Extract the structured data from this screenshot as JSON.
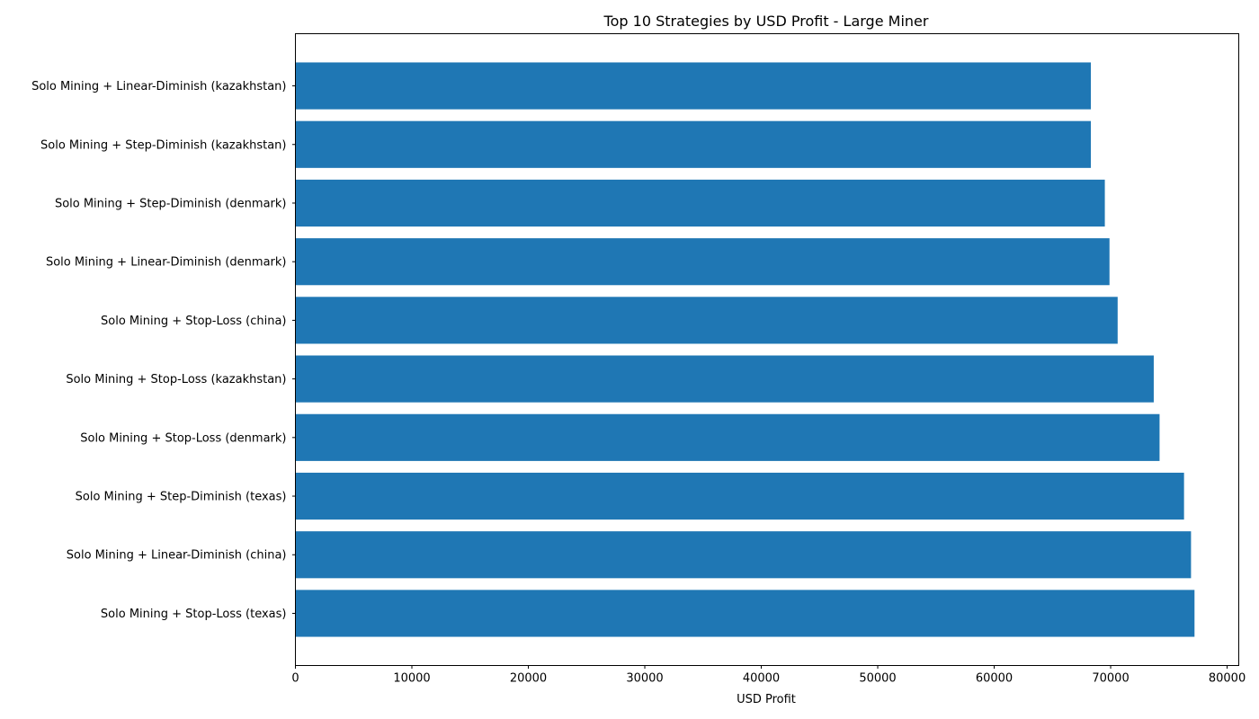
{
  "chart_data": {
    "type": "bar",
    "orientation": "horizontal",
    "title": "Top 10 Strategies by USD Profit - Large Miner",
    "xlabel": "USD Profit",
    "ylabel": "",
    "xlim": [
      0,
      81000
    ],
    "xticks": [
      0,
      10000,
      20000,
      30000,
      40000,
      50000,
      60000,
      70000,
      80000
    ],
    "xtick_labels": [
      "0",
      "10000",
      "20000",
      "30000",
      "40000",
      "50000",
      "60000",
      "70000",
      "80000"
    ],
    "grid": false,
    "bar_color": "#1f77b4",
    "categories": [
      "Solo Mining + Stop-Loss (texas)",
      "Solo Mining + Linear-Diminish (china)",
      "Solo Mining + Step-Diminish (texas)",
      "Solo Mining + Stop-Loss (denmark)",
      "Solo Mining + Stop-Loss (kazakhstan)",
      "Solo Mining + Stop-Loss (china)",
      "Solo Mining + Linear-Diminish (denmark)",
      "Solo Mining + Step-Diminish (denmark)",
      "Solo Mining + Step-Diminish (kazakhstan)",
      "Solo Mining + Linear-Diminish (kazakhstan)"
    ],
    "values": [
      77200,
      76900,
      76300,
      74200,
      73700,
      70600,
      69900,
      69500,
      68300,
      68300
    ]
  }
}
